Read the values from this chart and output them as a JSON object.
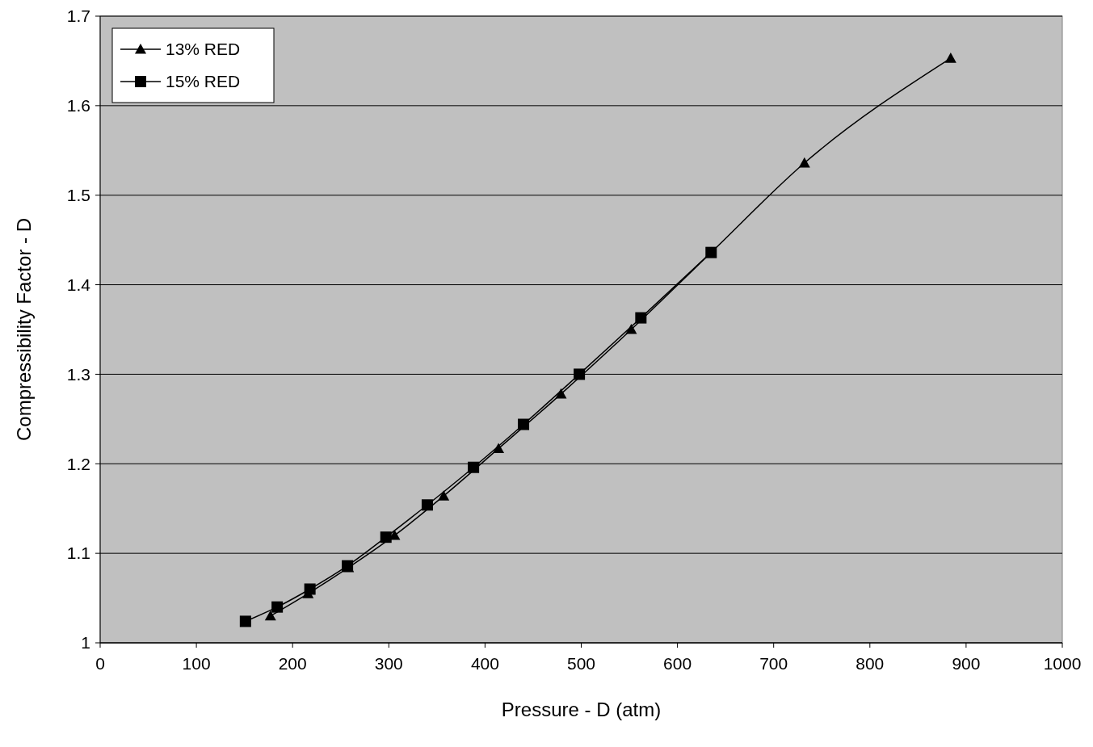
{
  "chart_data": {
    "type": "line",
    "xlabel": "Pressure - D (atm)",
    "ylabel": "Compressibility Factor - D",
    "xlim": [
      0,
      1000
    ],
    "xticks": [
      0,
      100,
      200,
      300,
      400,
      500,
      600,
      700,
      800,
      900,
      1000
    ],
    "ylim": [
      1,
      1.7
    ],
    "yticks": [
      1,
      1.1,
      1.2,
      1.3,
      1.4,
      1.5,
      1.6,
      1.7
    ],
    "grid": "y",
    "legend": "top left",
    "line_style": "solid",
    "series": [
      {
        "name": "13% RED",
        "color": "#000000",
        "marker": "triangle",
        "x": [
          177,
          216,
          258,
          306,
          357,
          414,
          479,
          552,
          635,
          732,
          884
        ],
        "values": [
          1.03,
          1.055,
          1.084,
          1.12,
          1.164,
          1.217,
          1.278,
          1.35,
          1.436,
          1.536,
          1.653
        ]
      },
      {
        "name": "15% RED",
        "color": "#000000",
        "marker": "square",
        "x": [
          151,
          184,
          218,
          257,
          297,
          340,
          388,
          440,
          498,
          562,
          635
        ],
        "values": [
          1.024,
          1.04,
          1.06,
          1.086,
          1.118,
          1.154,
          1.196,
          1.244,
          1.3,
          1.363,
          1.436
        ]
      }
    ]
  }
}
